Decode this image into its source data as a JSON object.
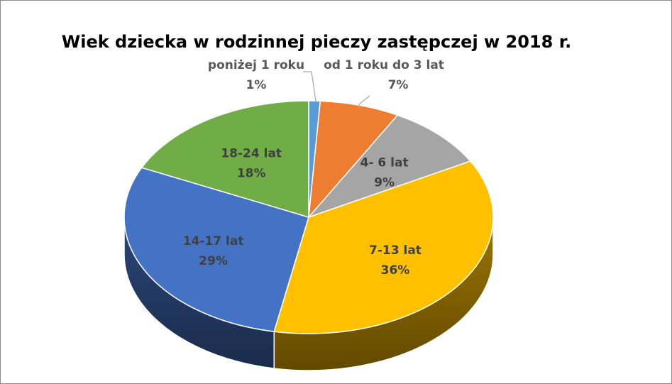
{
  "chart_data": {
    "type": "pie",
    "title": "Wiek dziecka w rodzinnej pieczy zastępczej w 2018 r.",
    "slices": [
      {
        "label": "poniżej 1 roku",
        "value": 1,
        "value_label": "1%",
        "color": "#5b9bd5"
      },
      {
        "label": "od 1 roku do 3 lat",
        "value": 7,
        "value_label": "7%",
        "color": "#ed7d31"
      },
      {
        "label": "4- 6 lat",
        "value": 9,
        "value_label": "9%",
        "color": "#a5a5a5"
      },
      {
        "label": "7-13 lat",
        "value": 36,
        "value_label": "36%",
        "color": "#ffc000"
      },
      {
        "label": "14-17 lat",
        "value": 29,
        "value_label": "29%",
        "color": "#4472c4"
      },
      {
        "label": "18-24 lat",
        "value": 18,
        "value_label": "18%",
        "color": "#70ad47"
      }
    ],
    "legend": "none",
    "style": "3d"
  }
}
